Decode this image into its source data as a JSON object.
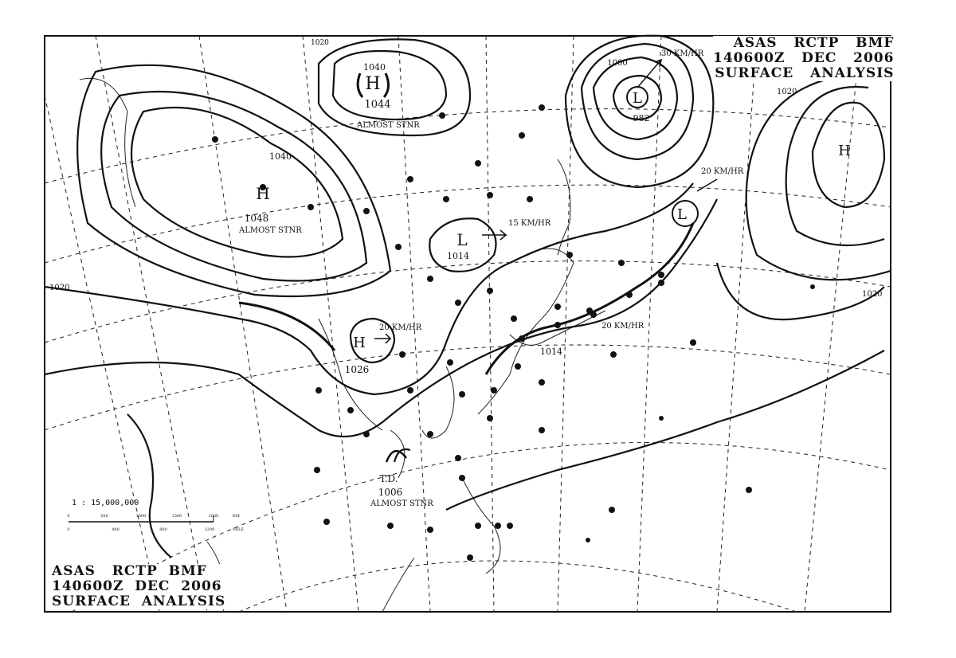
{
  "header": {
    "line1": "ASAS   RCTP   BMF",
    "line2": "140600Z   DEC   2006",
    "line3": "SURFACE   ANALYSIS"
  },
  "footer": {
    "line1": "ASAS   RCTP  BMF",
    "line2": "140600Z  DEC  2006",
    "line3": "SURFACE  ANALYSIS"
  },
  "scale": {
    "ratio": "1 : 15,000,000",
    "km_ticks": [
      "0",
      "500",
      "1000",
      "1500",
      "2000"
    ],
    "km_unit": "KM",
    "mile_ticks": [
      "0",
      "400",
      "800",
      "1200"
    ],
    "mile_unit": "MILE"
  },
  "pressure_centers": [
    {
      "type": "H",
      "value": "1044",
      "label2": "1040",
      "note": "ALMOST STNR"
    },
    {
      "type": "H",
      "value": "1048",
      "label2": "1040",
      "note": "ALMOST STNR"
    },
    {
      "type": "L",
      "value": "982",
      "label2": "1000",
      "motion": "30 KM/HR"
    },
    {
      "type": "H",
      "value": "",
      "label2": ""
    },
    {
      "type": "L",
      "value": "1014",
      "motion": "15 KM/HR"
    },
    {
      "type": "H",
      "value": "1026",
      "motion": "20 KM/HR"
    },
    {
      "type": "L",
      "value": "",
      "motion": "20 KM/HR"
    },
    {
      "type": "T.D.",
      "value": "1006",
      "note": "ALMOST STNR"
    }
  ],
  "isobar_labels": [
    "1020",
    "1020",
    "1020",
    "1020",
    "1014"
  ],
  "front_motion": "20 KM/HR",
  "colors": {
    "ink": "#111111",
    "paper": "#ffffff"
  }
}
